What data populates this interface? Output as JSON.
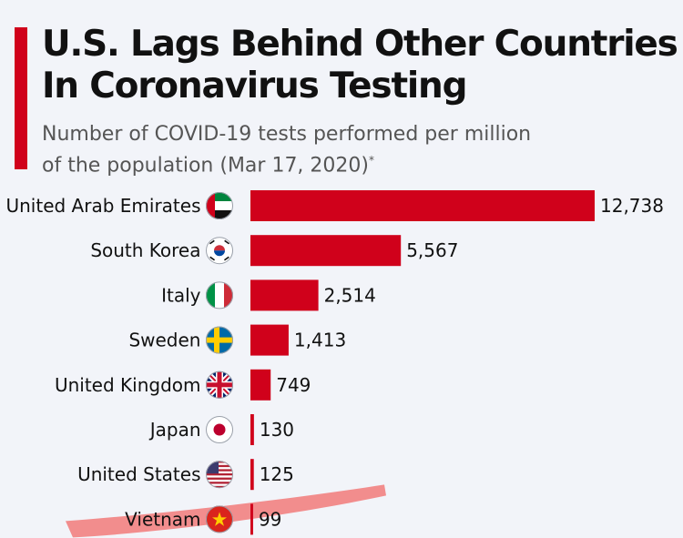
{
  "title_lines": [
    "U.S. Lags Behind Other Countries",
    "In Coronavirus Testing"
  ],
  "subtitle_line1": "Number of COVID-19 tests performed per million",
  "subtitle_line2": "of the population (Mar 17, 2020)",
  "subtitle_mark": "*",
  "colors": {
    "bar": "#d0011b",
    "accent": "#d0011b",
    "highlight": "#f27a7a"
  },
  "chart_data": {
    "type": "bar",
    "orientation": "horizontal",
    "categories": [
      "United Arab Emirates",
      "South Korea",
      "Italy",
      "Sweden",
      "United Kingdom",
      "Japan",
      "United States",
      "Vietnam"
    ],
    "values": [
      12738,
      5567,
      2514,
      1413,
      749,
      130,
      125,
      99
    ],
    "value_labels": [
      "12,738",
      "5,567",
      "2,514",
      "1,413",
      "749",
      "130",
      "125",
      "99"
    ],
    "flag_icons": [
      "uae-flag-icon",
      "south-korea-flag-icon",
      "italy-flag-icon",
      "sweden-flag-icon",
      "uk-flag-icon",
      "japan-flag-icon",
      "us-flag-icon",
      "vietnam-flag-icon"
    ],
    "xlim": [
      0,
      12738
    ],
    "highlighted_category": "Vietnam",
    "grid": false,
    "legend": "none"
  }
}
